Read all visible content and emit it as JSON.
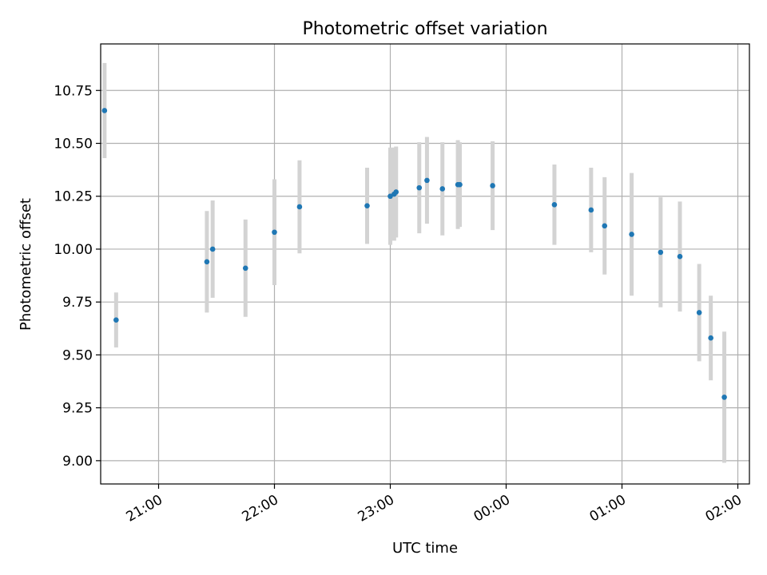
{
  "chart_data": {
    "type": "scatter",
    "title": "Photometric offset variation",
    "xlabel": "UTC time",
    "ylabel": "Photometric offset",
    "x_ticks": [
      "21:00",
      "22:00",
      "23:00",
      "00:00",
      "01:00",
      "02:00"
    ],
    "y_ticks": [
      "9.00",
      "9.25",
      "9.50",
      "9.75",
      "10.00",
      "10.25",
      "10.50",
      "10.75"
    ],
    "x_tick_values": [
      "21:00",
      "22:00",
      "23:00",
      "00:00",
      "01:00",
      "02:00"
    ],
    "y_tick_values": [
      9.0,
      9.25,
      9.5,
      9.75,
      10.0,
      10.25,
      10.5,
      10.75
    ],
    "xlim": [
      "20:30",
      "02:06"
    ],
    "ylim": [
      8.89,
      10.97
    ],
    "grid": true,
    "point_color": "#1f77b4",
    "errorbar_color": "#d3d3d3",
    "series": [
      {
        "points": [
          {
            "x": "20:32",
            "y": 10.655,
            "err": 0.225
          },
          {
            "x": "20:38",
            "y": 9.665,
            "err": 0.13
          },
          {
            "x": "21:25",
            "y": 9.94,
            "err": 0.24
          },
          {
            "x": "21:28",
            "y": 10.0,
            "err": 0.23
          },
          {
            "x": "21:45",
            "y": 9.91,
            "err": 0.23
          },
          {
            "x": "22:00",
            "y": 10.08,
            "err": 0.25
          },
          {
            "x": "22:13",
            "y": 10.2,
            "err": 0.22
          },
          {
            "x": "22:48",
            "y": 10.205,
            "err": 0.18
          },
          {
            "x": "23:00",
            "y": 10.25,
            "err": 0.23
          },
          {
            "x": "23:02",
            "y": 10.26,
            "err": 0.22
          },
          {
            "x": "23:03",
            "y": 10.27,
            "err": 0.215
          },
          {
            "x": "23:15",
            "y": 10.29,
            "err": 0.215
          },
          {
            "x": "23:19",
            "y": 10.325,
            "err": 0.205
          },
          {
            "x": "23:27",
            "y": 10.285,
            "err": 0.22
          },
          {
            "x": "23:35",
            "y": 10.305,
            "err": 0.21
          },
          {
            "x": "23:36",
            "y": 10.305,
            "err": 0.2
          },
          {
            "x": "23:53",
            "y": 10.3,
            "err": 0.21
          },
          {
            "x": "00:25",
            "y": 10.21,
            "err": 0.19
          },
          {
            "x": "00:44",
            "y": 10.185,
            "err": 0.2
          },
          {
            "x": "00:51",
            "y": 10.11,
            "err": 0.23
          },
          {
            "x": "01:05",
            "y": 10.07,
            "err": 0.29
          },
          {
            "x": "01:20",
            "y": 9.985,
            "err": 0.26
          },
          {
            "x": "01:30",
            "y": 9.965,
            "err": 0.26
          },
          {
            "x": "01:40",
            "y": 9.7,
            "err": 0.23
          },
          {
            "x": "01:46",
            "y": 9.58,
            "err": 0.2
          },
          {
            "x": "01:53",
            "y": 9.3,
            "err": 0.31
          }
        ]
      }
    ]
  }
}
